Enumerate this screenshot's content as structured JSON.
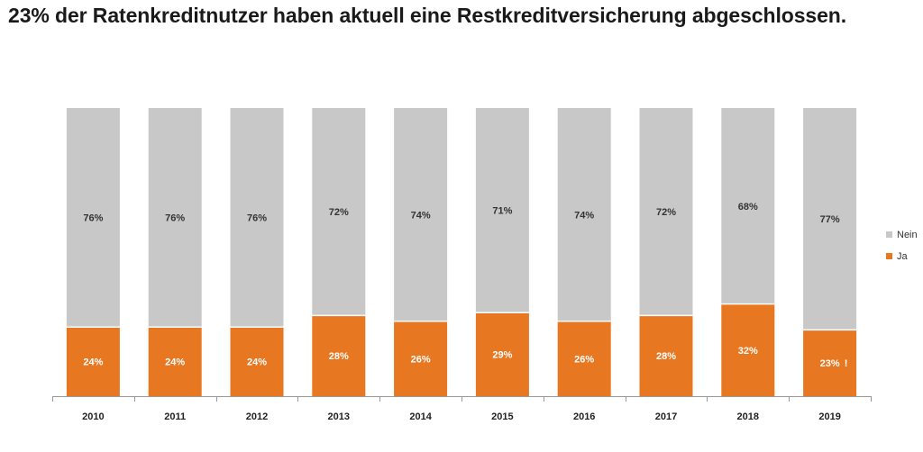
{
  "title": "23% der Ratenkreditnutzer haben aktuell eine Restkreditversicherung abgeschlossen.",
  "colors": {
    "ja": "#E87722",
    "nein": "#C8C8C8",
    "axis": "#999999",
    "ja_text": "#ffffff",
    "nein_text": "#333333"
  },
  "chart_data": {
    "type": "bar",
    "stacked": true,
    "percent_stacked": true,
    "title": "23% der Ratenkreditnutzer haben aktuell eine Restkreditversicherung abgeschlossen.",
    "categories": [
      "2010",
      "2011",
      "2012",
      "2013",
      "2014",
      "2015",
      "2016",
      "2017",
      "2018",
      "2019"
    ],
    "series": [
      {
        "name": "Ja",
        "values": [
          24,
          24,
          24,
          28,
          26,
          29,
          26,
          28,
          32,
          23
        ],
        "labels": [
          "24%",
          "24%",
          "24%",
          "28%",
          "26%",
          "29%",
          "26%",
          "28%",
          "32%",
          "23%"
        ]
      },
      {
        "name": "Nein",
        "values": [
          76,
          76,
          76,
          72,
          74,
          71,
          74,
          72,
          68,
          77
        ],
        "labels": [
          "76%",
          "76%",
          "76%",
          "72%",
          "74%",
          "71%",
          "74%",
          "72%",
          "68%",
          "77%"
        ]
      }
    ],
    "legend": [
      "Nein",
      "Ja"
    ],
    "legend_position": "right",
    "annotation": {
      "category": "2019",
      "text": "!"
    },
    "ylim": [
      0,
      100
    ],
    "xlabel": "",
    "ylabel": "",
    "grid": false
  }
}
